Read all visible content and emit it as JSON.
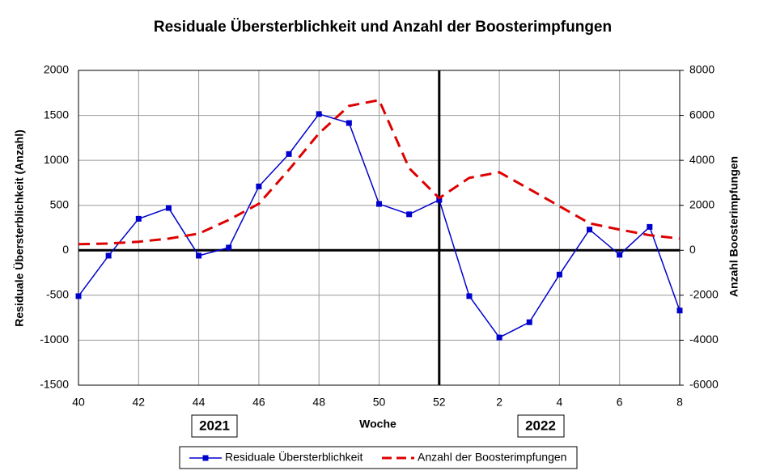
{
  "chart_data": {
    "type": "line",
    "title": "Residuale Übersterblichkeit und Anzahl der Boosterimpfungen",
    "x_label": "Woche",
    "y_label": "Residuale  Übersterblichkeit  (Anzahl)",
    "y2_label": "Anzahl  Boosterimpfungen",
    "annotations": [
      "2021",
      "2022"
    ],
    "categories": [
      "40",
      null,
      "42",
      null,
      "44",
      null,
      "46",
      null,
      "48",
      null,
      "50",
      null,
      "52",
      null,
      "2",
      null,
      "4",
      null,
      "6",
      null,
      "8"
    ],
    "series": [
      {
        "name": "Residuale Übersterblichkeit",
        "color": "#0000cc",
        "axis": "y",
        "values": [
          -510,
          -60,
          350,
          470,
          -60,
          30,
          710,
          1070,
          1515,
          1415,
          515,
          400,
          560,
          -510,
          -970,
          -800,
          -270,
          230,
          -50,
          260,
          -670
        ]
      },
      {
        "name": "Anzahl der Boosterimpfungen",
        "color": "#dd0000",
        "axis": "y2",
        "values": [
          270,
          300,
          380,
          520,
          740,
          1350,
          2070,
          3580,
          5200,
          6420,
          6680,
          3650,
          2320,
          3220,
          3470,
          2720,
          1960,
          1200,
          920,
          670,
          520
        ]
      }
    ],
    "ylim": [
      -1500,
      2000
    ],
    "yticks": [
      -1500,
      -1000,
      -500,
      0,
      500,
      1000,
      1500,
      2000
    ],
    "y2lim": [
      -6000,
      8000
    ],
    "y2ticks": [
      -6000,
      -4000,
      -2000,
      0,
      2000,
      4000,
      6000,
      8000
    ],
    "grid": true,
    "legend": "bottom"
  }
}
